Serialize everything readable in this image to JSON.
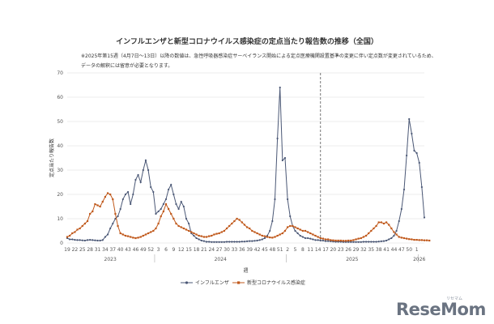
{
  "title": "インフルエンザと新型コロナウイルス感染症の定点当たり報告数の推移（全国）",
  "notes": [
    "※2025年第15週（4月7日〜13日）以降の数値は、急性呼吸器感染症サーベイランス開始による定点医療機関設置基準の変更に伴い定点数が変更されているため、",
    "データの解釈には留意が必要となります。"
  ],
  "logo": {
    "text": "ReseMom",
    "sub": "リセマム"
  },
  "colors": {
    "flu": "#4a5775",
    "covid": "#c0591c",
    "grid": "#d9d9d9",
    "divider": "#555555"
  },
  "chart_data": {
    "type": "line",
    "title": "インフルエンザと新型コロナウイルス感染症の定点当たり報告数の推移（全国）",
    "xlabel": "週",
    "ylabel": "定点当たり報告数",
    "ylim": [
      0,
      70
    ],
    "yticks": [
      0,
      10,
      20,
      30,
      40,
      50,
      60,
      70
    ],
    "grid": true,
    "legend_position": "bottom",
    "x_tick_labels": [
      "19",
      "22",
      "25",
      "28",
      "31",
      "34",
      "37",
      "40",
      "43",
      "46",
      "49",
      "52",
      "3",
      "6",
      "9",
      "12",
      "15",
      "18",
      "21",
      "24",
      "27",
      "30",
      "33",
      "36",
      "39",
      "42",
      "45",
      "48",
      "51",
      "2",
      "5",
      "8",
      "11",
      "14",
      "17",
      "20",
      "23",
      "26",
      "29",
      "32",
      "35",
      "38",
      "41",
      "44",
      "47",
      "50",
      "1"
    ],
    "year_labels": [
      {
        "label": "2023",
        "start": 0,
        "end": 34
      },
      {
        "label": "2024",
        "start": 35,
        "end": 86
      },
      {
        "label": "2025",
        "start": 87,
        "end": 138
      },
      {
        "label": "2026",
        "start": 139,
        "end": 139
      }
    ],
    "divider_week_index": 100,
    "series": [
      {
        "name": "インフルエンザ",
        "values": [
          2,
          1.5,
          1.5,
          1.3,
          1.2,
          1.2,
          1.1,
          1,
          1.2,
          1.3,
          1.2,
          1.1,
          1,
          1,
          1.2,
          2.5,
          3.5,
          6,
          8,
          10,
          11,
          14,
          18,
          20,
          21,
          16,
          20,
          26,
          28,
          25,
          30,
          34,
          30,
          23,
          21,
          12,
          13,
          14,
          16,
          18,
          22,
          24,
          20,
          16,
          14,
          17,
          15,
          10,
          8,
          4,
          3,
          2,
          1.5,
          1,
          0.8,
          0.5,
          0.5,
          0.4,
          0.4,
          0.4,
          0.4,
          0.4,
          0.4,
          0.5,
          0.5,
          0.5,
          0.5,
          0.5,
          0.5,
          0.6,
          0.6,
          0.7,
          0.8,
          0.8,
          0.9,
          1,
          1.2,
          1.5,
          2,
          3,
          5,
          9,
          18,
          43,
          64,
          34,
          35,
          18,
          11,
          7,
          5,
          4,
          3,
          2.5,
          2,
          2,
          1.8,
          1.5,
          1.2,
          1.2,
          1,
          1,
          0.8,
          0.8,
          0.7,
          0.6,
          0.5,
          0.5,
          0.5,
          0.4,
          0.4,
          0.4,
          0.4,
          0.4,
          0.4,
          0.4,
          0.4,
          0.5,
          0.5,
          0.5,
          0.5,
          0.5,
          0.5,
          0.6,
          0.7,
          0.8,
          1,
          1.5,
          2,
          3,
          5,
          9,
          14,
          22,
          36,
          51,
          45,
          38,
          37,
          33,
          23,
          10.5
        ]
      },
      {
        "name": "新型コロナウイルス感染症",
        "values": [
          2.5,
          3,
          4,
          4.5,
          5.5,
          6,
          7,
          8,
          9,
          12,
          13,
          16,
          15.5,
          15,
          17,
          19,
          20.5,
          20,
          18,
          12,
          7,
          4,
          3.5,
          3,
          2.8,
          2.5,
          2.2,
          2,
          2.2,
          2.5,
          3,
          3.5,
          4,
          4.5,
          5,
          6,
          8,
          11,
          13,
          16,
          14,
          12,
          10,
          8,
          7,
          6.5,
          6,
          5.5,
          5,
          4.5,
          4,
          3.5,
          3,
          2.8,
          2.5,
          2.5,
          2.8,
          3,
          3.5,
          3.8,
          4,
          4.5,
          5,
          6,
          7,
          8,
          9,
          10,
          9.5,
          8.5,
          7.5,
          6.5,
          6,
          5,
          4.5,
          4,
          3.5,
          3,
          2.8,
          2.5,
          2.3,
          2.2,
          2.5,
          3,
          3.5,
          4,
          5,
          6.5,
          7,
          7,
          6.5,
          6,
          5.5,
          5,
          5,
          4.5,
          4,
          3.5,
          3,
          2.5,
          2,
          1.8,
          1.5,
          1.5,
          1.2,
          1.1,
          1,
          1,
          1,
          0.9,
          0.9,
          1,
          1,
          1.2,
          1.5,
          1.8,
          2,
          2.5,
          3,
          4,
          5,
          6,
          7,
          8.5,
          8.5,
          8,
          8.5,
          7.5,
          6,
          4.5,
          3.5,
          2.5,
          2.2,
          2,
          1.8,
          1.6,
          1.5,
          1.3,
          1.3,
          1.2,
          1.2,
          1.1,
          1.1,
          1
        ]
      }
    ]
  }
}
